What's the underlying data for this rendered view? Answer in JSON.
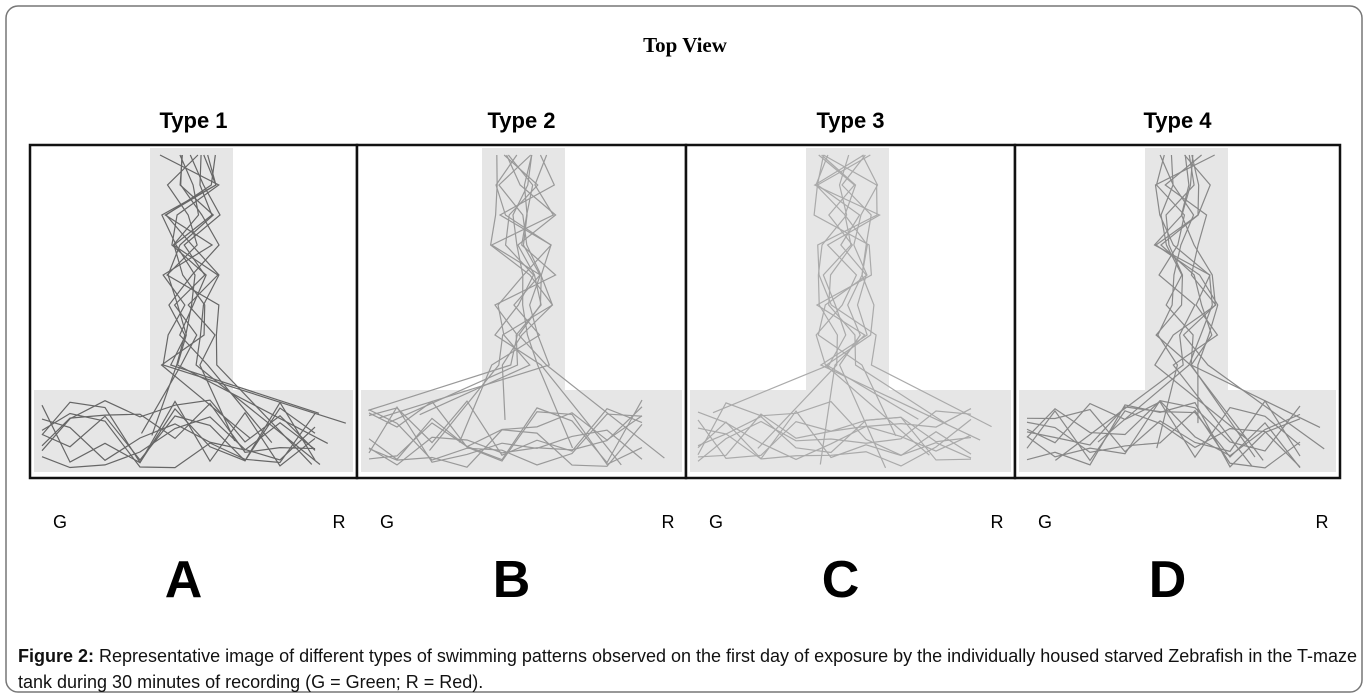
{
  "figure": {
    "title": "Top View",
    "panels": [
      {
        "type": "Type 1",
        "left": "G",
        "right": "R",
        "letter": "A"
      },
      {
        "type": "Type 2",
        "left": "G",
        "right": "R",
        "letter": "B"
      },
      {
        "type": "Type 3",
        "left": "G",
        "right": "R",
        "letter": "C"
      },
      {
        "type": "Type 4",
        "left": "G",
        "right": "R",
        "letter": "D"
      }
    ],
    "caption": {
      "label": "Figure 2:",
      "text": "Representative image of different types of swimming patterns observed on the first day of exposure by the individually housed starved Zebrafish in the T-maze tank during 30 minutes of recording (G = Green; R = Red)."
    }
  }
}
